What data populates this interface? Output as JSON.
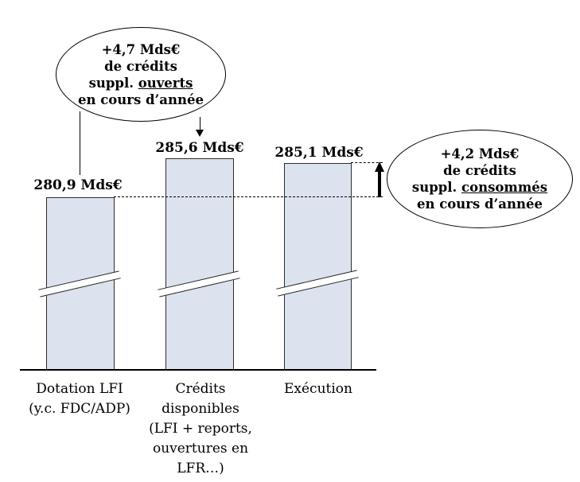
{
  "chart_data": {
    "type": "bar",
    "categories": [
      "Dotation LFI (y.c. FDC/ADP)",
      "Crédits disponibles (LFI + reports, ouvertures en LFR…)",
      "Exécution"
    ],
    "values": [
      280.9,
      285.6,
      285.1
    ],
    "value_labels": [
      "280,9 Mds€",
      "285,6 Mds€",
      "285,1 Mds€"
    ],
    "unit": "Mds€",
    "title": "",
    "xlabel": "",
    "ylabel": "",
    "axis_break": true,
    "grid": false,
    "legend": false,
    "bar_color": "#dce3ee",
    "bar_border_color": "#2b2b2b",
    "annotations": [
      {
        "text": "+4,7 Mds€ de crédits suppl. ouverts en cours d'année",
        "underlined_word": "ouverts",
        "value_delta": 4.7,
        "points_to": [
          "Dotation LFI (y.c. FDC/ADP)",
          "Crédits disponibles (LFI + reports, ouvertures en LFR…)"
        ]
      },
      {
        "text": "+4,2 Mds€ de crédits suppl. consommés en cours d'année",
        "underlined_word": "consommés",
        "value_delta": 4.2,
        "points_to": [
          "Exécution"
        ]
      }
    ],
    "dashed_reference_levels": [
      280.9,
      285.1
    ]
  },
  "callout_open": {
    "line1": "+4,7 Mds€",
    "line2": "de crédits",
    "line3_prefix": "suppl. ",
    "line3_underline": "ouverts",
    "line4": "en cours d’année"
  },
  "callout_consumed": {
    "line1": "+4,2 Mds€",
    "line2": "de crédits",
    "line3_prefix": "suppl. ",
    "line3_underline": "consommés",
    "line4": "en cours d’année"
  },
  "bars": [
    {
      "value": "280,9 Mds€",
      "label_lines": [
        "Dotation LFI",
        "(y.c. FDC/ADP)"
      ]
    },
    {
      "value": "285,6 Mds€",
      "label_lines": [
        "Crédits",
        "disponibles",
        "(LFI + reports,",
        "ouvertures en",
        "LFR…)"
      ]
    },
    {
      "value": "285,1 Mds€",
      "label_lines": [
        "Exécution"
      ]
    }
  ]
}
